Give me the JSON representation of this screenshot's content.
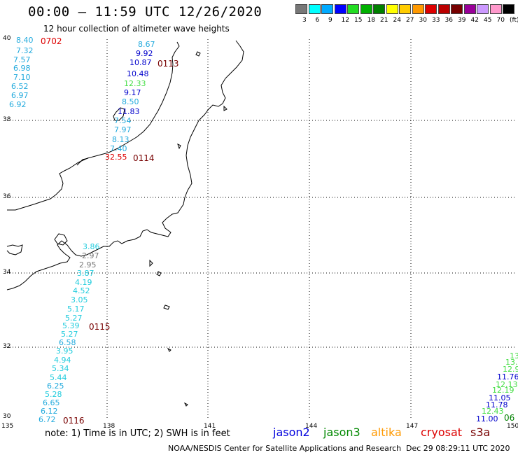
{
  "title": "00:00 – 11:59 UTC 12/26/2020",
  "subtitle": "12 hour collection of altimeter wave heights",
  "colorbar": {
    "colors": [
      "#777777",
      "#00ffff",
      "#00aaff",
      "#0000ff",
      "#22dd22",
      "#00b000",
      "#008000",
      "#ffff00",
      "#ffcc00",
      "#ff9900",
      "#dd0000",
      "#bb0000",
      "#770000",
      "#990099",
      "#cc99ff",
      "#ff99cc",
      "#000000"
    ],
    "ticks": [
      "3",
      "6",
      "9",
      "12",
      "15",
      "18",
      "21",
      "24",
      "27",
      "30",
      "33",
      "36",
      "39",
      "42",
      "45",
      "70",
      "(ft)"
    ]
  },
  "lat_labels": [
    "40",
    "38",
    "36",
    "34",
    "32",
    "30"
  ],
  "lon_labels": [
    "135",
    "138",
    "141",
    "144",
    "147",
    "150"
  ],
  "observations": [
    {
      "v": "8.40",
      "c": "#22aadd"
    },
    {
      "v": "7.32",
      "c": "#22aadd"
    },
    {
      "v": "7.57",
      "c": "#22aadd"
    },
    {
      "v": "6.98",
      "c": "#22aadd"
    },
    {
      "v": "7.10",
      "c": "#22aadd"
    },
    {
      "v": "6.52",
      "c": "#22aadd"
    },
    {
      "v": "6.97",
      "c": "#22aadd"
    },
    {
      "v": "6.92",
      "c": "#22aadd"
    },
    {
      "v": "8.67",
      "c": "#22aadd"
    },
    {
      "v": "9.92",
      "c": "#0000cc"
    },
    {
      "v": "10.87",
      "c": "#0000cc"
    },
    {
      "v": "10.48",
      "c": "#0000cc"
    },
    {
      "v": "12.33",
      "c": "#44dd44"
    },
    {
      "v": "9.17",
      "c": "#0000cc"
    },
    {
      "v": "8.50",
      "c": "#22aadd"
    },
    {
      "v": "11.83",
      "c": "#0000cc"
    },
    {
      "v": "7.54",
      "c": "#22aadd"
    },
    {
      "v": "7.97",
      "c": "#22aadd"
    },
    {
      "v": "8.13",
      "c": "#22aadd"
    },
    {
      "v": "7.40",
      "c": "#22aadd"
    },
    {
      "v": "32.55",
      "c": "#dd0000"
    },
    {
      "v": "3.86",
      "c": "#22ccdd"
    },
    {
      "v": "2.97",
      "c": "#777777"
    },
    {
      "v": "2.95",
      "c": "#777777"
    },
    {
      "v": "3.87",
      "c": "#22ccdd"
    },
    {
      "v": "4.19",
      "c": "#22ccdd"
    },
    {
      "v": "4.52",
      "c": "#22ccdd"
    },
    {
      "v": "3.05",
      "c": "#22ccdd"
    },
    {
      "v": "5.17",
      "c": "#22ccdd"
    },
    {
      "v": "5.27",
      "c": "#22ccdd"
    },
    {
      "v": "5.39",
      "c": "#22ccdd"
    },
    {
      "v": "5.27",
      "c": "#22ccdd"
    },
    {
      "v": "6.58",
      "c": "#22aadd"
    },
    {
      "v": "3.95",
      "c": "#22ccdd"
    },
    {
      "v": "4.94",
      "c": "#22ccdd"
    },
    {
      "v": "5.34",
      "c": "#22ccdd"
    },
    {
      "v": "5.44",
      "c": "#22ccdd"
    },
    {
      "v": "6.25",
      "c": "#22aadd"
    },
    {
      "v": "5.28",
      "c": "#22ccdd"
    },
    {
      "v": "6.65",
      "c": "#22aadd"
    },
    {
      "v": "6.12",
      "c": "#22aadd"
    },
    {
      "v": "6.72",
      "c": "#22aadd"
    },
    {
      "v": "13.",
      "c": "#44dd44"
    },
    {
      "v": "13.",
      "c": "#44dd44"
    },
    {
      "v": "12.9",
      "c": "#44dd44"
    },
    {
      "v": "11.76",
      "c": "#0000cc"
    },
    {
      "v": "12.13",
      "c": "#44dd44"
    },
    {
      "v": "12.19",
      "c": "#44dd44"
    },
    {
      "v": "11.05",
      "c": "#0000cc"
    },
    {
      "v": "11.78",
      "c": "#0000cc"
    },
    {
      "v": "12.43",
      "c": "#44dd44"
    },
    {
      "v": "11.00",
      "c": "#0000cc"
    }
  ],
  "times": [
    {
      "v": "0702",
      "c": "#dd0000"
    },
    {
      "v": "0113",
      "c": "#770000"
    },
    {
      "v": "0114",
      "c": "#770000"
    },
    {
      "v": "0115",
      "c": "#770000"
    },
    {
      "v": "0116",
      "c": "#770000"
    },
    {
      "v": "06",
      "c": "#008000"
    }
  ],
  "note": "note:  1) Time is in UTC;  2) SWH is in feet",
  "satellites": [
    {
      "name": "jason2",
      "color": "#0000dd"
    },
    {
      "name": "jason3",
      "color": "#008800"
    },
    {
      "name": "altika",
      "color": "#ff9900"
    },
    {
      "name": "cryosat",
      "color": "#dd0000"
    },
    {
      "name": "s3a",
      "color": "#770000"
    }
  ],
  "footer": "NOAA/NESDIS Center for Satellite Applications and Research",
  "footer_time": "Dec 29 08:29:11 UTC 2020"
}
